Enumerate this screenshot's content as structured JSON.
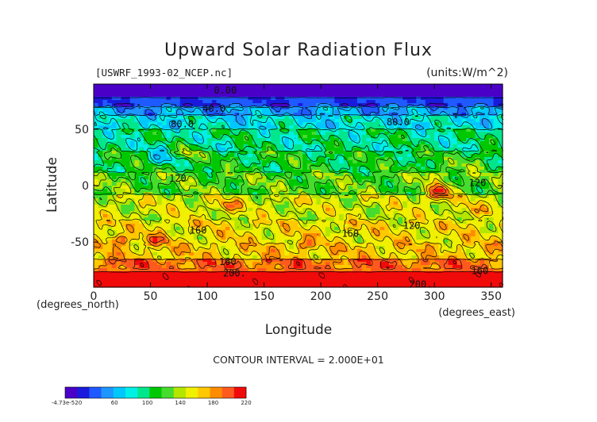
{
  "chart_data": {
    "type": "heatmap",
    "title": "Upward Solar Radiation Flux",
    "source_label": "[USWRF_1993-02_NCEP.nc]",
    "units_label": "(units:W/m^2)",
    "xlabel": "Longitude",
    "xunit": "(degrees_east)",
    "ylabel": "Latitude",
    "yunit": "(degrees_north)",
    "xlim": [
      0,
      360
    ],
    "ylim": [
      -90,
      90
    ],
    "xticks": [
      0,
      50,
      100,
      150,
      200,
      250,
      300,
      350
    ],
    "yticks": [
      -50,
      0,
      50
    ],
    "contour_interval_text": "CONTOUR INTERVAL = 2.000E+01",
    "contour_labels": [
      {
        "text": "0.00",
        "lon": 116,
        "lat": 84
      },
      {
        "text": "40.0",
        "lon": 106,
        "lat": 68
      },
      {
        "text": "80.0",
        "lon": 78,
        "lat": 54
      },
      {
        "text": "80.0",
        "lon": 268,
        "lat": 56
      },
      {
        "text": "120",
        "lon": 74,
        "lat": 6
      },
      {
        "text": "120",
        "lon": 338,
        "lat": 2
      },
      {
        "text": "120",
        "lon": 280,
        "lat": -36
      },
      {
        "text": "160",
        "lon": 92,
        "lat": -40
      },
      {
        "text": "160",
        "lon": 226,
        "lat": -43
      },
      {
        "text": "160",
        "lon": 118,
        "lat": -68
      },
      {
        "text": "160",
        "lon": 340,
        "lat": -76
      },
      {
        "text": "200.",
        "lon": 124,
        "lat": -78
      },
      {
        "text": "200.",
        "lon": 288,
        "lat": -88
      }
    ],
    "colorbar": {
      "min_label": "-4.73e-520",
      "tick_labels": [
        "60",
        "100",
        "140",
        "180",
        "220"
      ],
      "levels": [
        0,
        220
      ]
    },
    "colors": [
      "#4b00c8",
      "#1a1adc",
      "#1e5aff",
      "#1e96ff",
      "#00c8ff",
      "#00f0e6",
      "#00e68c",
      "#00c800",
      "#46dc2d",
      "#b4e600",
      "#f0f000",
      "#ffc800",
      "#ff8c00",
      "#ff5a1e",
      "#f00a0a"
    ]
  }
}
